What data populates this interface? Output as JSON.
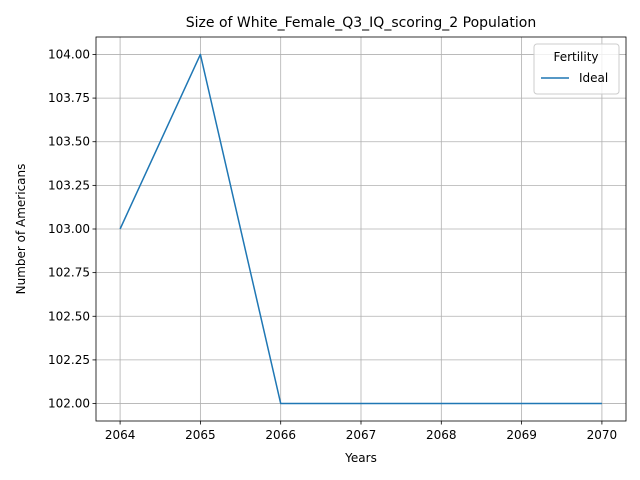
{
  "chart_data": {
    "type": "line",
    "title": "Size of White_Female_Q3_IQ_scoring_2 Population",
    "xlabel": "Years",
    "ylabel": "Number of Americans",
    "x": [
      2064,
      2065,
      2066,
      2067,
      2068,
      2069,
      2070
    ],
    "series": [
      {
        "name": "Ideal",
        "values": [
          103,
          104,
          102,
          102,
          102,
          102,
          102
        ],
        "color": "#1f77b4"
      }
    ],
    "xlim": [
      2063.7,
      2070.3
    ],
    "ylim": [
      101.9,
      104.1
    ],
    "xticks": [
      "2064",
      "2065",
      "2066",
      "2067",
      "2068",
      "2069",
      "2070"
    ],
    "yticks": [
      "102.00",
      "102.25",
      "102.50",
      "102.75",
      "103.00",
      "103.25",
      "103.50",
      "103.75",
      "104.00"
    ],
    "grid": true,
    "legend": {
      "title": "Fertility",
      "position": "top-right"
    }
  }
}
